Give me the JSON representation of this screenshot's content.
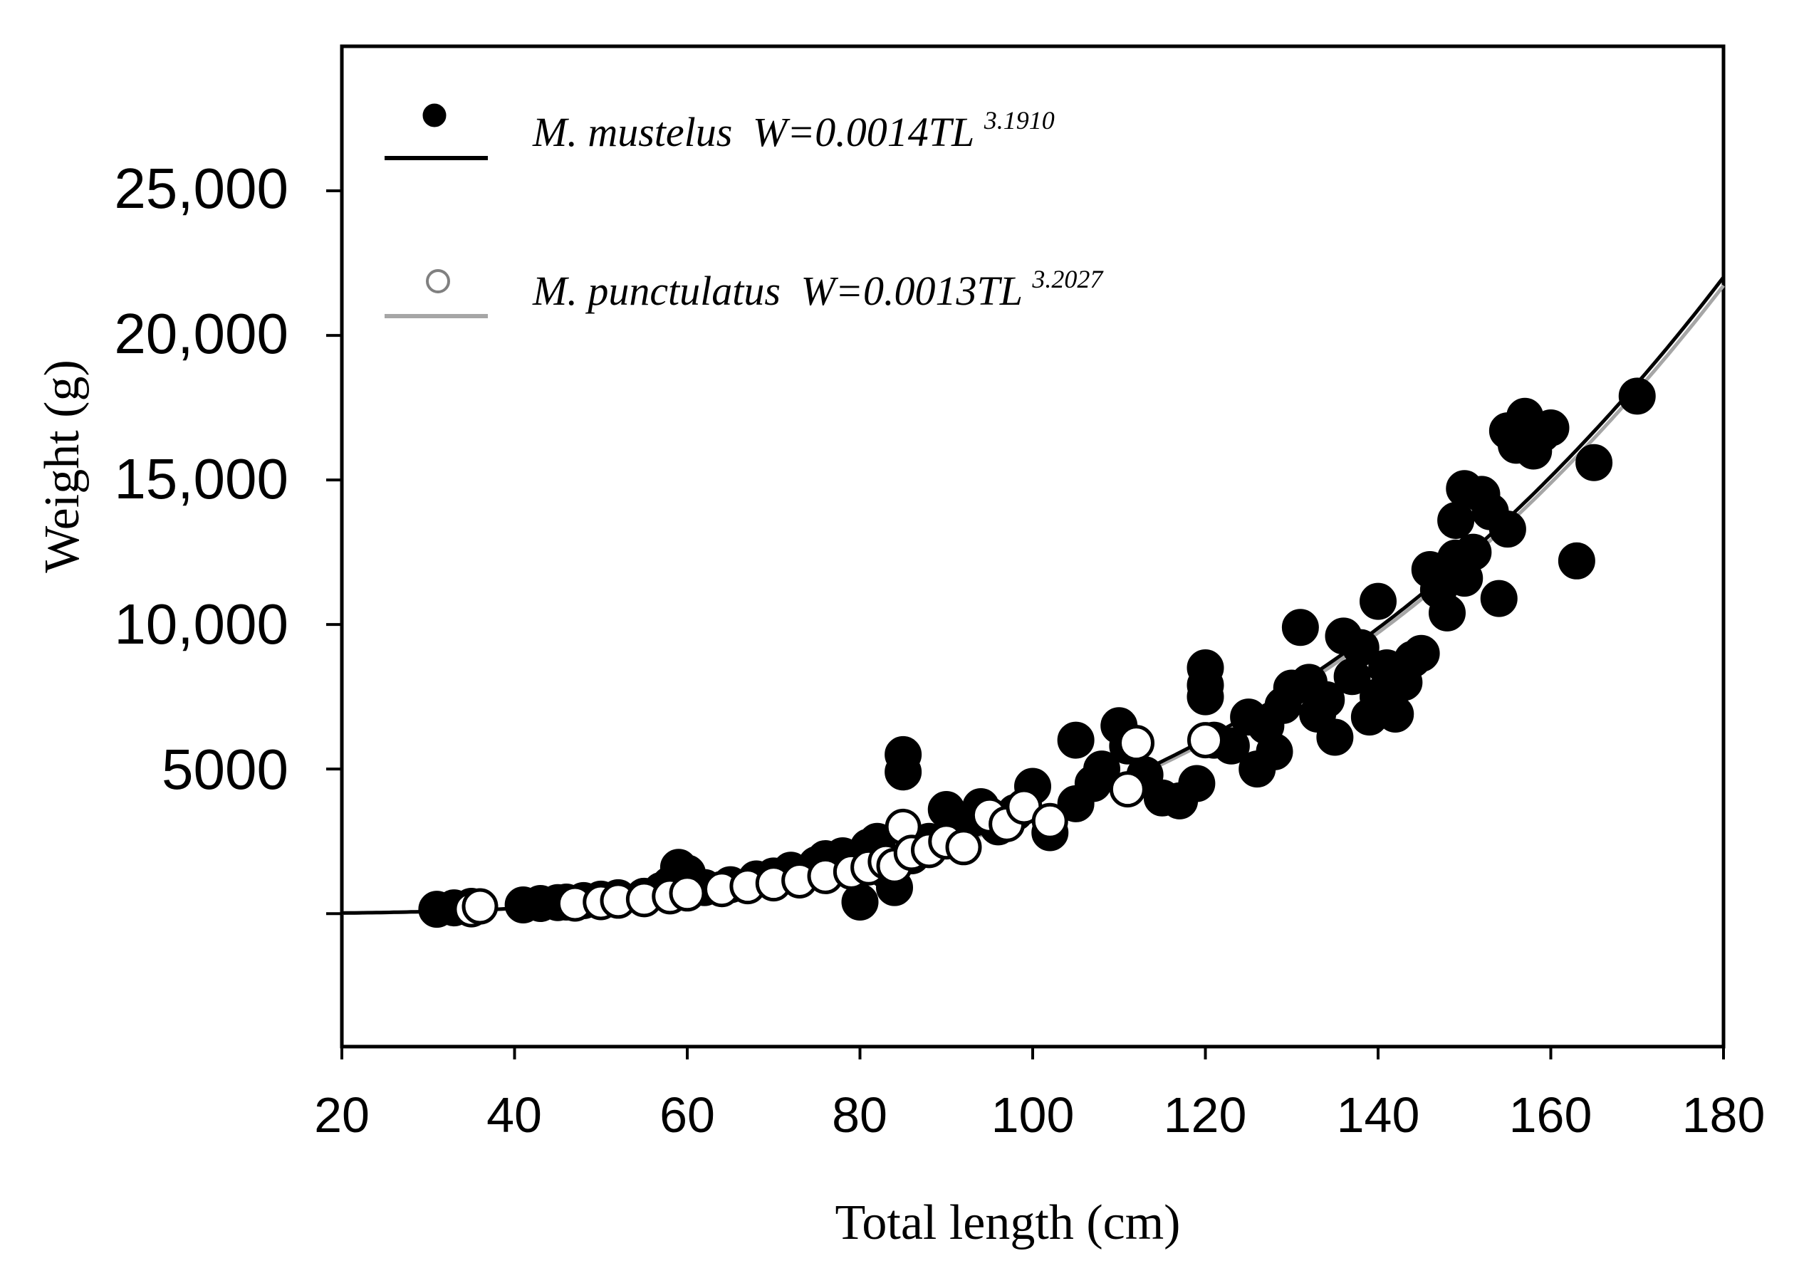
{
  "chart_data": {
    "type": "scatter",
    "title": "",
    "xlabel": "Total length (cm)",
    "ylabel": "Weight (g)",
    "xlim": [
      20,
      180
    ],
    "ylim": [
      -4600,
      30000
    ],
    "x_ticks": [
      20,
      40,
      60,
      80,
      100,
      120,
      140,
      160,
      180
    ],
    "x_tick_labels": [
      "20",
      "40",
      "60",
      "80",
      "100",
      "120",
      "140",
      "160",
      "180"
    ],
    "y_ticks": [
      0,
      5000,
      10000,
      15000,
      20000,
      25000
    ],
    "y_tick_labels": [
      "",
      "5000",
      "10,000",
      "15,000",
      "20,000",
      "25,000"
    ],
    "legend_position": "top-left",
    "series": [
      {
        "name": "M. mustelus",
        "legend_name": "M. mustelus",
        "equation_prefix": "W=0.0014TL",
        "equation_exponent": "3.1910",
        "a": 0.0014,
        "b": 3.191,
        "marker": "filled-circle",
        "color": "#000000",
        "line_color": "#000000",
        "points": [
          [
            31,
            150
          ],
          [
            33,
            200
          ],
          [
            35,
            250
          ],
          [
            41,
            300
          ],
          [
            43,
            350
          ],
          [
            45,
            380
          ],
          [
            46,
            400
          ],
          [
            48,
            450
          ],
          [
            50,
            500
          ],
          [
            52,
            550
          ],
          [
            55,
            600
          ],
          [
            57,
            800
          ],
          [
            58,
            1000
          ],
          [
            59,
            1600
          ],
          [
            60,
            1400
          ],
          [
            62,
            900
          ],
          [
            65,
            1000
          ],
          [
            68,
            1200
          ],
          [
            70,
            1300
          ],
          [
            72,
            1500
          ],
          [
            75,
            1700
          ],
          [
            76,
            1900
          ],
          [
            78,
            2000
          ],
          [
            80,
            400
          ],
          [
            81,
            2300
          ],
          [
            82,
            2500
          ],
          [
            83,
            1500
          ],
          [
            84,
            900
          ],
          [
            85,
            5500
          ],
          [
            85,
            4900
          ],
          [
            86,
            2000
          ],
          [
            88,
            2500
          ],
          [
            90,
            3600
          ],
          [
            92,
            3100
          ],
          [
            94,
            3700
          ],
          [
            96,
            3000
          ],
          [
            98,
            3500
          ],
          [
            100,
            4400
          ],
          [
            102,
            2800
          ],
          [
            105,
            3800
          ],
          [
            105,
            6000
          ],
          [
            107,
            4500
          ],
          [
            108,
            5000
          ],
          [
            110,
            6500
          ],
          [
            111,
            5800
          ],
          [
            113,
            4800
          ],
          [
            115,
            4000
          ],
          [
            117,
            3900
          ],
          [
            119,
            4500
          ],
          [
            120,
            8500
          ],
          [
            120,
            7900
          ],
          [
            120,
            7500
          ],
          [
            121,
            6000
          ],
          [
            123,
            5800
          ],
          [
            125,
            6800
          ],
          [
            126,
            5000
          ],
          [
            127,
            6500
          ],
          [
            128,
            5600
          ],
          [
            129,
            7200
          ],
          [
            130,
            7800
          ],
          [
            131,
            9900
          ],
          [
            132,
            8000
          ],
          [
            133,
            6900
          ],
          [
            134,
            7400
          ],
          [
            135,
            6100
          ],
          [
            136,
            9600
          ],
          [
            137,
            8200
          ],
          [
            138,
            9200
          ],
          [
            139,
            6800
          ],
          [
            140,
            10800
          ],
          [
            140,
            7500
          ],
          [
            141,
            8500
          ],
          [
            142,
            6900
          ],
          [
            143,
            8000
          ],
          [
            144,
            8800
          ],
          [
            145,
            9000
          ],
          [
            146,
            11900
          ],
          [
            147,
            11200
          ],
          [
            148,
            10400
          ],
          [
            149,
            12300
          ],
          [
            149,
            13600
          ],
          [
            150,
            14700
          ],
          [
            150,
            11600
          ],
          [
            151,
            12500
          ],
          [
            152,
            14500
          ],
          [
            153,
            13900
          ],
          [
            154,
            10900
          ],
          [
            155,
            13300
          ],
          [
            155,
            16700
          ],
          [
            156,
            16200
          ],
          [
            157,
            17200
          ],
          [
            158,
            16000
          ],
          [
            159,
            16600
          ],
          [
            160,
            16800
          ],
          [
            163,
            12200
          ],
          [
            165,
            15600
          ],
          [
            170,
            17900
          ]
        ]
      },
      {
        "name": "M. punctulatus",
        "legend_name": "M. punctulatus",
        "equation_prefix": "W=0.0013TL",
        "equation_exponent": "3.2027",
        "a": 0.0013,
        "b": 3.2027,
        "marker": "open-circle",
        "color": "#ffffff",
        "line_color": "#a6a6a6",
        "points": [
          [
            35,
            150
          ],
          [
            36,
            250
          ],
          [
            47,
            350
          ],
          [
            50,
            400
          ],
          [
            52,
            450
          ],
          [
            55,
            500
          ],
          [
            58,
            600
          ],
          [
            60,
            700
          ],
          [
            64,
            850
          ],
          [
            67,
            950
          ],
          [
            70,
            1050
          ],
          [
            73,
            1150
          ],
          [
            76,
            1300
          ],
          [
            79,
            1450
          ],
          [
            81,
            1600
          ],
          [
            83,
            1800
          ],
          [
            84,
            1650
          ],
          [
            85,
            3000
          ],
          [
            86,
            2100
          ],
          [
            88,
            2200
          ],
          [
            90,
            2500
          ],
          [
            92,
            2300
          ],
          [
            95,
            3400
          ],
          [
            97,
            3100
          ],
          [
            99,
            3700
          ],
          [
            102,
            3200
          ],
          [
            111,
            4300
          ],
          [
            112,
            5900
          ],
          [
            120,
            6000
          ]
        ]
      }
    ]
  }
}
